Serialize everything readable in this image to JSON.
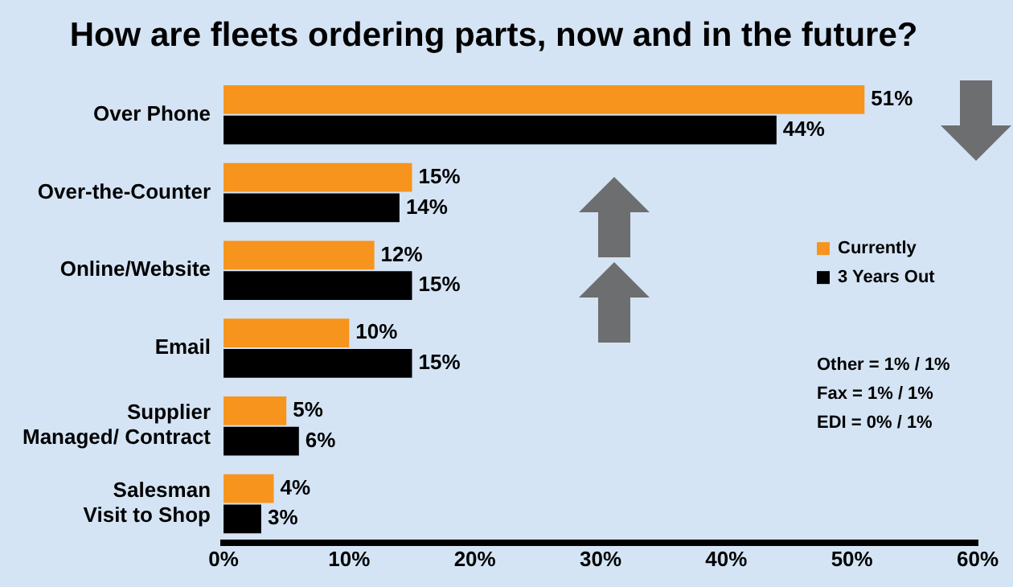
{
  "chart_data": {
    "type": "bar",
    "orientation": "horizontal",
    "title": "How are fleets ordering parts, now and in the future?",
    "categories": [
      "Over Phone",
      "Over-the-Counter",
      "Online/Website",
      "Email",
      "Supplier Managed/ Contract",
      "Salesman Visit to Shop"
    ],
    "series": [
      {
        "name": "Currently",
        "color": "#f7941d",
        "values": [
          51,
          15,
          12,
          10,
          5,
          4
        ],
        "value_labels": [
          "51%",
          "15%",
          "12%",
          "10%",
          "5%",
          "4%"
        ]
      },
      {
        "name": "3 Years Out",
        "color": "#000000",
        "values": [
          44,
          14,
          15,
          15,
          6,
          3
        ],
        "value_labels": [
          "44%",
          "14%",
          "15%",
          "15%",
          "6%",
          "3%"
        ]
      }
    ],
    "xlim": [
      0,
      60
    ],
    "xticks": [
      {
        "value": 0,
        "label": "0%"
      },
      {
        "value": 10,
        "label": "10%"
      },
      {
        "value": 20,
        "label": "20%"
      },
      {
        "value": 30,
        "label": "30%"
      },
      {
        "value": 40,
        "label": "40%"
      },
      {
        "value": 50,
        "label": "50%"
      },
      {
        "value": 60,
        "label": "60%"
      }
    ],
    "grid": false,
    "legend": "right",
    "annotations": [
      "Other = 1% / 1%",
      "Fax = 1% / 1%",
      "EDI = 0% / 1%"
    ]
  }
}
